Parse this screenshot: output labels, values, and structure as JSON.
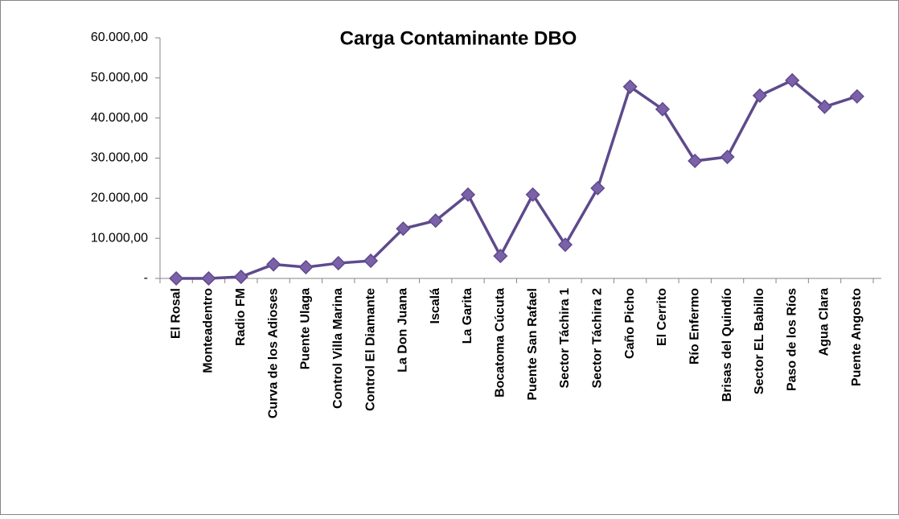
{
  "chart_data": {
    "type": "line",
    "title": "Carga Contaminante DBO",
    "categories": [
      "El Rosal",
      "Monteadentro",
      "Radio  FM",
      "Curva de los Adioses",
      "Puente Ulaga",
      "Control Villa Marina",
      "Control El Diamante",
      "La Don Juana",
      "Iscalá",
      "La Garita",
      "Bocatoma Cúcuta",
      "Puente San Rafael",
      "Sector Táchira 1",
      "Sector Táchira 2",
      "Caño Picho",
      "El Cerrito",
      "Río Enfermo",
      "Brisas del Quindío",
      "Sector EL Babillo",
      "Paso de los Ríos",
      "Agua Clara",
      "Puente Angosto"
    ],
    "values": [
      0,
      0,
      400,
      3500,
      2800,
      3800,
      4400,
      12400,
      14400,
      20900,
      5600,
      20900,
      8400,
      22500,
      47800,
      42200,
      29300,
      30300,
      45600,
      49400,
      42800,
      45400
    ],
    "color": "#5e4a8c",
    "marker_color": "#7b62a8",
    "ylim": [
      0,
      60000
    ],
    "yticks": [
      {
        "value": 0,
        "label": "-"
      },
      {
        "value": 10000,
        "label": "10.000,00"
      },
      {
        "value": 20000,
        "label": "20.000,00"
      },
      {
        "value": 30000,
        "label": "30.000,00"
      },
      {
        "value": 40000,
        "label": "40.000,00"
      },
      {
        "value": 50000,
        "label": "50.000,00"
      },
      {
        "value": 60000,
        "label": "60.000,00"
      }
    ]
  }
}
